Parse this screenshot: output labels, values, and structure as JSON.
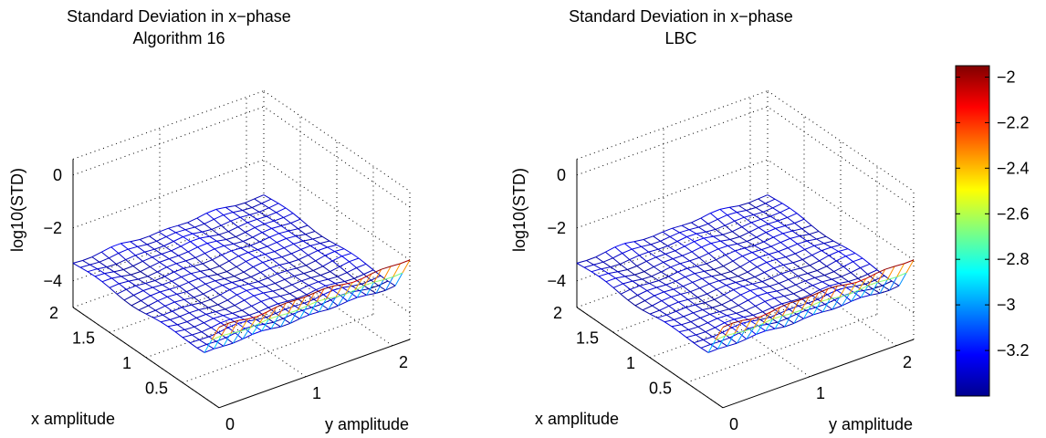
{
  "chart_data": [
    {
      "type": "surface",
      "title": "Standard Deviation in x−phase",
      "subtitle": "Algorithm 16",
      "xlabel": "x amplitude",
      "ylabel": "y amplitude",
      "zlabel": "log10(STD)",
      "x_ticks": [
        "0.5",
        "1",
        "1.5",
        "2"
      ],
      "x_tick_values": [
        0.5,
        1,
        1.5,
        2
      ],
      "y_ticks": [
        "0",
        "1",
        "2"
      ],
      "y_tick_values": [
        0,
        1,
        2
      ],
      "z_ticks": [
        "0",
        "−2",
        "−4"
      ],
      "z_tick_values": [
        0,
        -2,
        -4
      ],
      "xlim": [
        0,
        2
      ],
      "ylim": [
        0,
        2.2
      ],
      "zlim": [
        -5,
        0.6
      ],
      "grid": true,
      "surface_range": [
        -3.4,
        -1.9
      ],
      "surface_summary": "log10(STD) about −3.3 across most of the x/y grid, rising toward about −2.0 along the x = 0 edge"
    },
    {
      "type": "surface",
      "title": "Standard Deviation in x−phase",
      "subtitle": "LBC",
      "xlabel": "x amplitude",
      "ylabel": "y amplitude",
      "zlabel": "log10(STD)",
      "x_ticks": [
        "0.5",
        "1",
        "1.5",
        "2"
      ],
      "x_tick_values": [
        0.5,
        1,
        1.5,
        2
      ],
      "y_ticks": [
        "0",
        "1",
        "2"
      ],
      "y_tick_values": [
        0,
        1,
        2
      ],
      "z_ticks": [
        "0",
        "−2",
        "−4"
      ],
      "z_tick_values": [
        0,
        -2,
        -4
      ],
      "xlim": [
        0,
        2
      ],
      "ylim": [
        0,
        2.2
      ],
      "zlim": [
        -5,
        0.6
      ],
      "grid": true,
      "surface_range": [
        -3.4,
        -1.9
      ],
      "surface_summary": "log10(STD) about −3.3 across most of the x/y grid, rising toward about −2.0 along the x = 0 edge"
    }
  ],
  "colorbar": {
    "colormap": "jet",
    "min": -3.4,
    "max": -1.95,
    "tick_values": [
      -2,
      -2.2,
      -2.4,
      -2.6,
      -2.8,
      -3,
      -3.2
    ],
    "tick_labels": [
      "−2",
      "−2.2",
      "−2.4",
      "−2.6",
      "−2.8",
      "−3",
      "−3.2"
    ]
  }
}
